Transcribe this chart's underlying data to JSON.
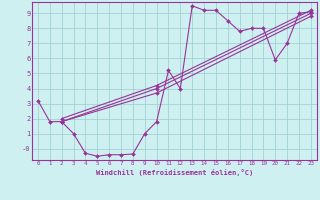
{
  "xlabel": "Windchill (Refroidissement éolien,°C)",
  "background_color": "#cff0f0",
  "line_color": "#993399",
  "xlim": [
    -0.5,
    23.5
  ],
  "ylim": [
    -0.75,
    9.75
  ],
  "xticks": [
    0,
    1,
    2,
    3,
    4,
    5,
    6,
    7,
    8,
    9,
    10,
    11,
    12,
    13,
    14,
    15,
    16,
    17,
    18,
    19,
    20,
    21,
    22,
    23
  ],
  "ytick_vals": [
    9,
    8,
    7,
    6,
    5,
    4,
    3,
    2,
    1,
    0
  ],
  "ytick_labels": [
    "9",
    "8",
    "7",
    "6",
    "5",
    "4",
    "3",
    "2",
    "1",
    "-0"
  ],
  "line1_x": [
    0,
    1,
    2,
    3,
    4,
    5,
    6,
    7,
    8,
    9,
    10,
    11,
    12,
    13,
    14,
    15,
    16,
    17,
    18,
    19,
    20,
    21,
    22,
    23
  ],
  "line1_y": [
    3.2,
    1.8,
    1.8,
    1.0,
    -0.3,
    -0.5,
    -0.4,
    -0.4,
    -0.35,
    1.0,
    1.8,
    5.2,
    4.0,
    9.5,
    9.2,
    9.2,
    8.5,
    7.8,
    8.0,
    8.0,
    5.9,
    7.0,
    9.0,
    9.1
  ],
  "line2_x": [
    2,
    10,
    23
  ],
  "line2_y": [
    1.8,
    4.0,
    9.0
  ],
  "line3_x": [
    2,
    10,
    23
  ],
  "line3_y": [
    1.8,
    3.7,
    8.8
  ],
  "line4_x": [
    2,
    10,
    23
  ],
  "line4_y": [
    2.0,
    4.2,
    9.2
  ],
  "grid_color": "#99cccc",
  "markersize": 2.0
}
